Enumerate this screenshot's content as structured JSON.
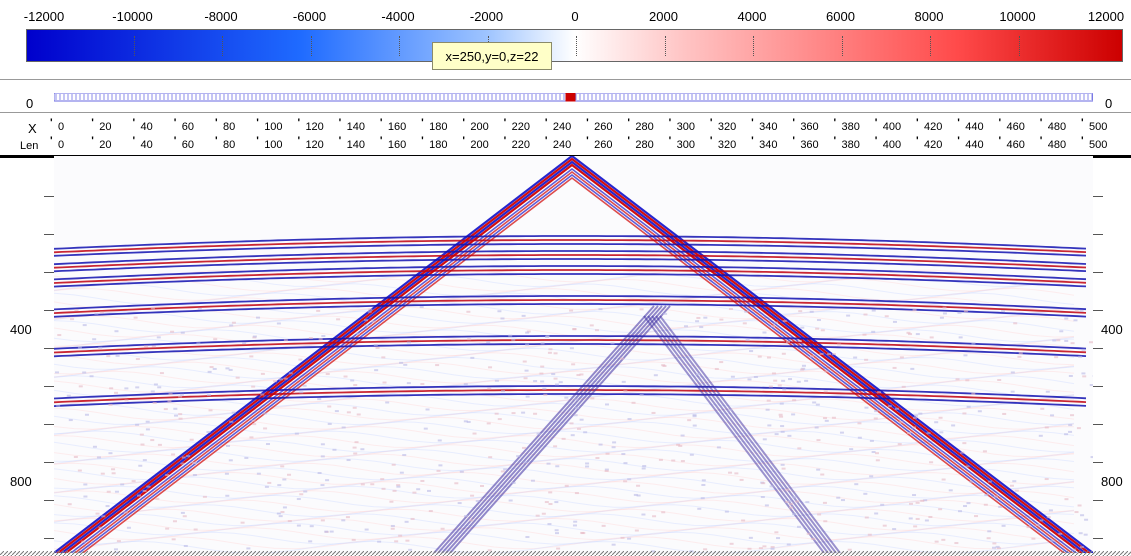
{
  "colorbar": {
    "ticks": [
      "-12000",
      "-10000",
      "-8000",
      "-6000",
      "-4000",
      "-2000",
      "0",
      "2000",
      "4000",
      "6000",
      "8000",
      "10000",
      "12000"
    ],
    "colors": {
      "negative": "#0000cc",
      "zero": "#ffffff",
      "positive": "#cc0000"
    }
  },
  "tooltip": {
    "text": "x=250,y=0,z=22"
  },
  "station_bar": {
    "left_label": "0",
    "right_label": "0"
  },
  "header": {
    "row1_label": "X",
    "row2_label": "Len",
    "x_values": [
      "0",
      "20",
      "40",
      "60",
      "80",
      "100",
      "120",
      "140",
      "160",
      "180",
      "200",
      "220",
      "240",
      "260",
      "280",
      "300",
      "320",
      "340",
      "360",
      "380",
      "400",
      "420",
      "440",
      "460",
      "480",
      "500"
    ],
    "len_values": [
      "0",
      "20",
      "40",
      "60",
      "80",
      "100",
      "120",
      "140",
      "160",
      "180",
      "200",
      "220",
      "240",
      "260",
      "280",
      "300",
      "320",
      "340",
      "360",
      "380",
      "400",
      "420",
      "440",
      "460",
      "480",
      "500"
    ]
  },
  "time_axis": {
    "labels": [
      "400",
      "800"
    ]
  },
  "icons": {
    "station_marker": "red-square-icon"
  }
}
